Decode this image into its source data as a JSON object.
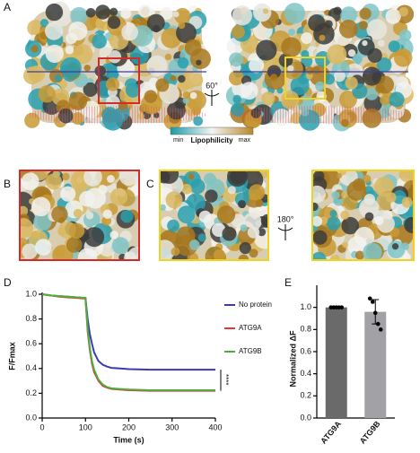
{
  "panels": {
    "a": "A",
    "b": "B",
    "c": "C",
    "d": "D",
    "e": "E"
  },
  "rotation_a": "60°",
  "rotation_c": "180°",
  "colorbar": {
    "min": "min",
    "max": "max",
    "label": "Lipophilicity"
  },
  "chart_data": [
    {
      "type": "line",
      "x_label": "Time (s)",
      "y_label": "F/Fmax",
      "x": [
        0,
        20,
        40,
        60,
        80,
        100,
        105,
        110,
        115,
        120,
        130,
        140,
        150,
        160,
        180,
        200,
        250,
        300,
        350,
        400
      ],
      "series": [
        {
          "name": "No protein",
          "color": "#3a3ab8",
          "values": [
            1.0,
            0.99,
            0.985,
            0.98,
            0.975,
            0.97,
            0.8,
            0.68,
            0.6,
            0.53,
            0.46,
            0.43,
            0.415,
            0.405,
            0.4,
            0.395,
            0.39,
            0.39,
            0.39,
            0.39
          ]
        },
        {
          "name": "ATG9A",
          "color": "#e0353b",
          "values": [
            1.0,
            0.99,
            0.98,
            0.975,
            0.97,
            0.965,
            0.7,
            0.55,
            0.44,
            0.37,
            0.3,
            0.26,
            0.245,
            0.235,
            0.23,
            0.225,
            0.22,
            0.22,
            0.22,
            0.22
          ]
        },
        {
          "name": "ATG9B",
          "color": "#4caf3a",
          "values": [
            1.0,
            0.99,
            0.985,
            0.98,
            0.975,
            0.97,
            0.72,
            0.57,
            0.46,
            0.39,
            0.31,
            0.27,
            0.25,
            0.24,
            0.235,
            0.23,
            0.225,
            0.225,
            0.225,
            0.225
          ]
        }
      ],
      "xlim": [
        0,
        400
      ],
      "xticks": [
        0,
        100,
        200,
        300,
        400
      ],
      "ylim": [
        0,
        1.0
      ],
      "yticks": [
        {
          "value": 0,
          "label": "0.0"
        },
        0.2,
        0.4,
        0.6,
        0.8,
        {
          "value": 1,
          "label": "1.0"
        }
      ],
      "annotation": "****"
    },
    {
      "type": "bar",
      "y_label": "Normalized ΔF",
      "categories": [
        "ATG9A",
        "ATG9B"
      ],
      "values": [
        1.0,
        0.96
      ],
      "errors": [
        0,
        0.11
      ],
      "points": [
        [
          1.0,
          1.0,
          1.0,
          1.0,
          1.0
        ],
        [
          1.08,
          1.05,
          0.95,
          0.85,
          0.8
        ]
      ],
      "colors": [
        "#6a6a6a",
        "#a2a2a6"
      ],
      "ylim": [
        0,
        1.2
      ],
      "yticks": [
        {
          "value": 0,
          "label": "0.0"
        },
        0.2,
        0.4,
        0.6,
        0.8,
        {
          "value": 1,
          "label": "1.0"
        }
      ]
    }
  ]
}
